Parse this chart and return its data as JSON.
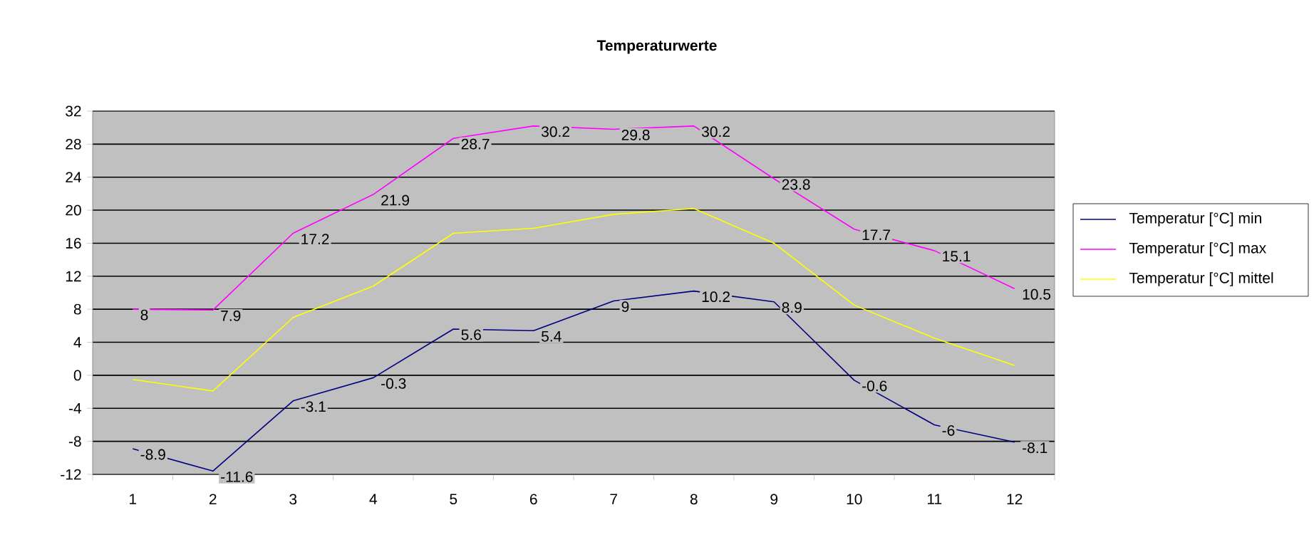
{
  "chart_data": {
    "type": "line",
    "title": "Temperaturwerte",
    "categories": [
      "1",
      "2",
      "3",
      "4",
      "5",
      "6",
      "7",
      "8",
      "9",
      "10",
      "11",
      "12"
    ],
    "series": [
      {
        "name": "Temperatur [°C] min",
        "color": "#000080",
        "values": [
          -8.9,
          -11.6,
          -3.1,
          -0.3,
          5.6,
          5.4,
          9,
          10.2,
          8.9,
          -0.6,
          -6,
          -8.1
        ],
        "value_labels": [
          "-8.9",
          "-11.6",
          "-3.1",
          "-0.3",
          "5.6",
          "5.4",
          "9",
          "10.2",
          "8.9",
          "-0.6",
          "-6",
          "-8.1"
        ]
      },
      {
        "name": "Temperatur [°C] max",
        "color": "#ff00ff",
        "values": [
          8,
          7.9,
          17.2,
          21.9,
          28.7,
          30.2,
          29.8,
          30.2,
          23.8,
          17.7,
          15.1,
          10.5
        ],
        "value_labels": [
          "8",
          "7.9",
          "17.2",
          "21.9",
          "28.7",
          "30.2",
          "29.8",
          "30.2",
          "23.8",
          "17.7",
          "15.1",
          "10.5"
        ]
      },
      {
        "name": "Temperatur [°C] mittel",
        "color": "#ffff00",
        "values": [
          -0.5,
          -1.9,
          7.0,
          10.8,
          17.2,
          17.8,
          19.5,
          20.2,
          16.0,
          8.5,
          4.5,
          1.2
        ]
      }
    ],
    "ylim": [
      -12,
      32
    ],
    "yticks": [
      -12,
      -8,
      -4,
      0,
      4,
      8,
      12,
      16,
      20,
      24,
      28,
      32
    ],
    "grid": "y",
    "legend": "right",
    "marker": "none",
    "line_style": "solid"
  }
}
